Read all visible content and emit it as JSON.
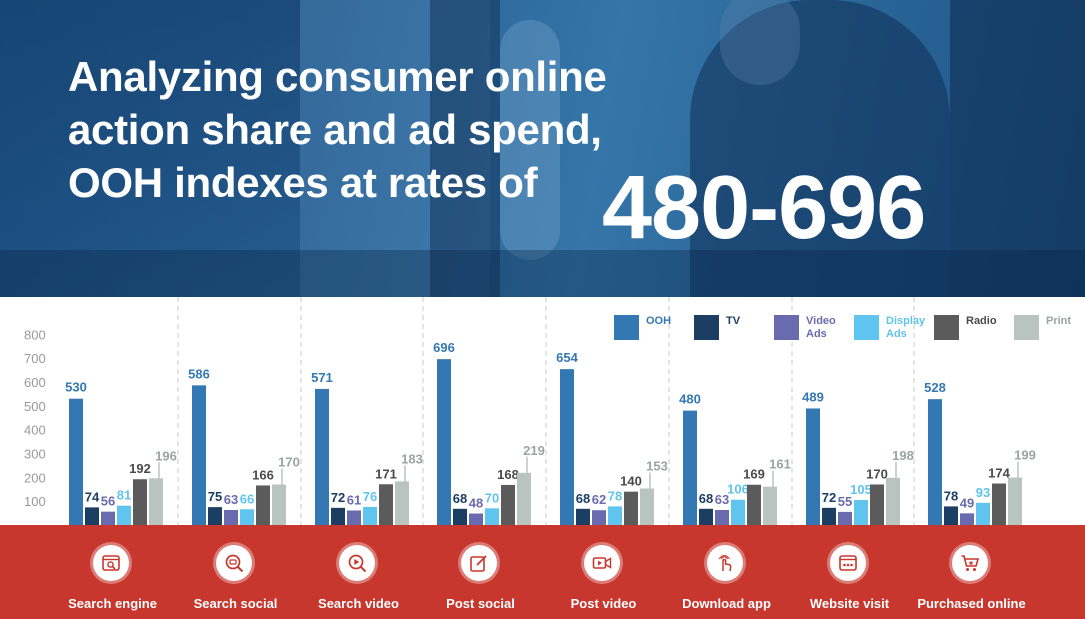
{
  "headline": {
    "lines": [
      "Analyzing consumer online",
      "action share and ad spend,",
      "OOH indexes at rates of"
    ],
    "range": "480-696"
  },
  "colors": {
    "OOH": "#3378b2",
    "TV": "#1c3e63",
    "Video Ads": "#6a6aaf",
    "Display Ads": "#5fc4ee",
    "Radio": "#5b5b5b",
    "Print": "#b9c3c0",
    "footer": "#c8372d"
  },
  "chart_data": {
    "type": "bar",
    "categories": [
      "Search engine",
      "Search social",
      "Search video",
      "Post social",
      "Post video",
      "Download app",
      "Website visit",
      "Purchased online"
    ],
    "series": [
      {
        "name": "OOH",
        "values": [
          530,
          586,
          571,
          696,
          654,
          480,
          489,
          528
        ]
      },
      {
        "name": "TV",
        "values": [
          74,
          75,
          72,
          68,
          68,
          68,
          72,
          78
        ]
      },
      {
        "name": "Video Ads",
        "values": [
          56,
          63,
          61,
          48,
          62,
          63,
          55,
          49
        ]
      },
      {
        "name": "Display Ads",
        "values": [
          81,
          66,
          76,
          70,
          78,
          106,
          105,
          93
        ]
      },
      {
        "name": "Radio",
        "values": [
          192,
          166,
          171,
          168,
          140,
          169,
          170,
          174
        ]
      },
      {
        "name": "Print",
        "values": [
          196,
          170,
          183,
          219,
          153,
          161,
          198,
          199
        ]
      }
    ],
    "yticks": [
      "800",
      "700",
      "600",
      "500",
      "400",
      "300",
      "200",
      "100"
    ],
    "ylim": [
      0,
      800
    ],
    "legend_position": "top-right",
    "grid": false
  },
  "legend": [
    {
      "label": "OOH",
      "color": "#3378b2"
    },
    {
      "label": "TV",
      "color": "#1c3e63"
    },
    {
      "label": "Video\nAds",
      "color": "#6a6aaf"
    },
    {
      "label": "Display\nAds",
      "color": "#5fc4ee"
    },
    {
      "label": "Radio",
      "color": "#5b5b5b"
    },
    {
      "label": "Print",
      "color": "#b9c3c0"
    }
  ],
  "footer": {
    "items": [
      {
        "label": "Search engine",
        "icon": "search-engine-icon"
      },
      {
        "label": "Search social",
        "icon": "search-social-icon"
      },
      {
        "label": "Search video",
        "icon": "search-video-icon"
      },
      {
        "label": "Post social",
        "icon": "post-social-icon"
      },
      {
        "label": "Post video",
        "icon": "post-video-icon"
      },
      {
        "label": "Download app",
        "icon": "download-app-icon"
      },
      {
        "label": "Website visit",
        "icon": "website-visit-icon"
      },
      {
        "label": "Purchased online",
        "icon": "purchased-online-icon"
      }
    ]
  }
}
